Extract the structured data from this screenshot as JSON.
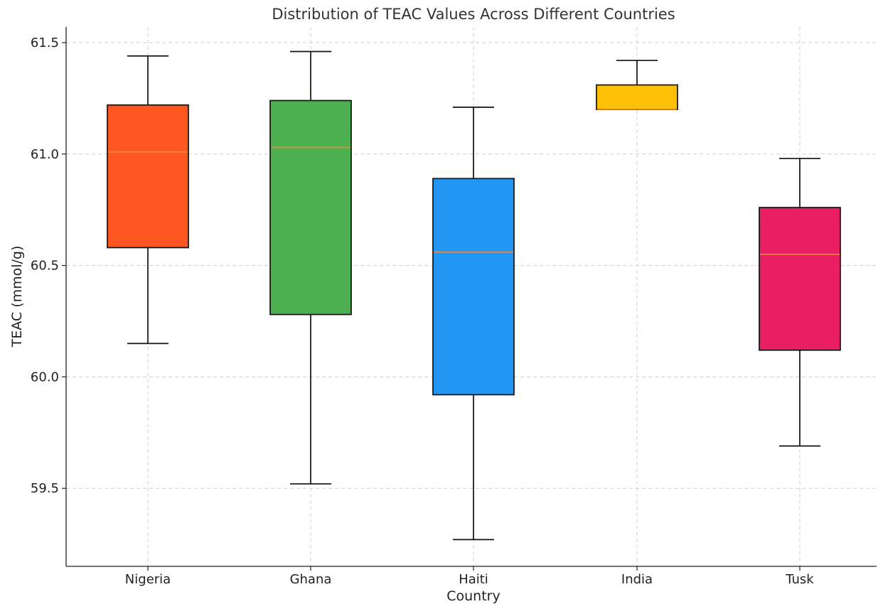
{
  "chart_data": {
    "type": "box",
    "title": "Distribution of TEAC Values Across Different Countries",
    "xlabel": "Country",
    "ylabel": "TEAC (mmol/g)",
    "ylim": [
      59.15,
      61.57
    ],
    "yticks": [
      59.5,
      60.0,
      60.5,
      61.0,
      61.5
    ],
    "ytick_labels": [
      "59.5",
      "60.0",
      "60.5",
      "61.0",
      "61.5"
    ],
    "grid": true,
    "categories": [
      "Nigeria",
      "Ghana",
      "Haiti",
      "India",
      "Tusk"
    ],
    "boxes": [
      {
        "category": "Nigeria",
        "color": "#FF5722",
        "whisker_low": 60.15,
        "q1": 60.58,
        "median": 61.01,
        "q3": 61.22,
        "whisker_high": 61.44
      },
      {
        "category": "Ghana",
        "color": "#4CAF50",
        "whisker_low": 59.52,
        "q1": 60.28,
        "median": 61.03,
        "q3": 61.24,
        "whisker_high": 61.46
      },
      {
        "category": "Haiti",
        "color": "#2196F3",
        "whisker_low": 59.27,
        "q1": 59.92,
        "median": 60.56,
        "q3": 60.89,
        "whisker_high": 61.21
      },
      {
        "category": "India",
        "color": "#FFC107",
        "whisker_low": 61.2,
        "q1": 61.2,
        "median": 61.2,
        "q3": 61.31,
        "whisker_high": 61.42
      },
      {
        "category": "Tusk",
        "color": "#E91E63",
        "whisker_low": 59.69,
        "q1": 60.12,
        "median": 60.55,
        "q3": 60.76,
        "whisker_high": 60.98
      }
    ]
  }
}
